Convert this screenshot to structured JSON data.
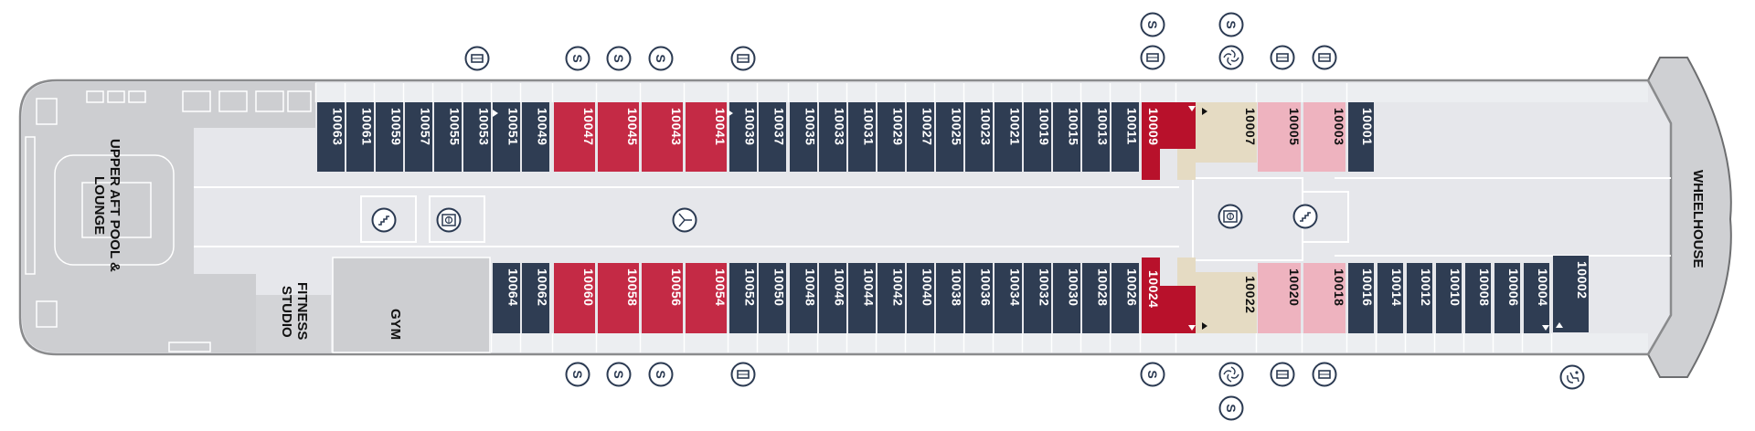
{
  "colors": {
    "navy": "#2f3d53",
    "red": "#c42a45",
    "dark-red": "#b8112b",
    "beige": "#e5dbc3",
    "pink": "#eeb3bf",
    "deck": "#e6e7eb",
    "stern": "#cdced1",
    "hull-line": "#8a8b8d",
    "icon": "#2b3a52"
  },
  "areas": {
    "pool": "UPPER AFT POOL & LOUNGE",
    "fitness": "FITNESS STUDIO",
    "gym": "GYM",
    "wheelhouse": "WHEELHOUSE"
  },
  "cabins_top": [
    {
      "number": "10063",
      "category": "navy"
    },
    {
      "number": "10061",
      "category": "navy"
    },
    {
      "number": "10059",
      "category": "navy"
    },
    {
      "number": "10057",
      "category": "navy"
    },
    {
      "number": "10055",
      "category": "navy"
    },
    {
      "number": "10053",
      "category": "navy"
    },
    {
      "number": "10051",
      "category": "navy"
    },
    {
      "number": "10049",
      "category": "navy"
    },
    {
      "number": "10047",
      "category": "red"
    },
    {
      "number": "10045",
      "category": "red"
    },
    {
      "number": "10043",
      "category": "red"
    },
    {
      "number": "10041",
      "category": "red"
    },
    {
      "number": "10039",
      "category": "navy"
    },
    {
      "number": "10037",
      "category": "navy"
    },
    {
      "number": "10035",
      "category": "navy"
    },
    {
      "number": "10033",
      "category": "navy"
    },
    {
      "number": "10031",
      "category": "navy"
    },
    {
      "number": "10029",
      "category": "navy"
    },
    {
      "number": "10027",
      "category": "navy"
    },
    {
      "number": "10025",
      "category": "navy"
    },
    {
      "number": "10023",
      "category": "navy"
    },
    {
      "number": "10021",
      "category": "navy"
    },
    {
      "number": "10019",
      "category": "navy"
    },
    {
      "number": "10015",
      "category": "navy"
    },
    {
      "number": "10013",
      "category": "navy"
    },
    {
      "number": "10011",
      "category": "navy"
    },
    {
      "number": "10009",
      "category": "dark-red"
    },
    {
      "number": "10007",
      "category": "beige"
    },
    {
      "number": "10005",
      "category": "pink"
    },
    {
      "number": "10003",
      "category": "pink"
    },
    {
      "number": "10001",
      "category": "navy"
    }
  ],
  "cabins_bottom": [
    {
      "number": "10064",
      "category": "navy"
    },
    {
      "number": "10062",
      "category": "navy"
    },
    {
      "number": "10060",
      "category": "red"
    },
    {
      "number": "10058",
      "category": "red"
    },
    {
      "number": "10056",
      "category": "red"
    },
    {
      "number": "10054",
      "category": "red"
    },
    {
      "number": "10052",
      "category": "navy"
    },
    {
      "number": "10050",
      "category": "navy"
    },
    {
      "number": "10048",
      "category": "navy"
    },
    {
      "number": "10046",
      "category": "navy"
    },
    {
      "number": "10044",
      "category": "navy"
    },
    {
      "number": "10042",
      "category": "navy"
    },
    {
      "number": "10040",
      "category": "navy"
    },
    {
      "number": "10038",
      "category": "navy"
    },
    {
      "number": "10036",
      "category": "navy"
    },
    {
      "number": "10034",
      "category": "navy"
    },
    {
      "number": "10032",
      "category": "navy"
    },
    {
      "number": "10030",
      "category": "navy"
    },
    {
      "number": "10028",
      "category": "navy"
    },
    {
      "number": "10026",
      "category": "navy"
    },
    {
      "number": "10024",
      "category": "dark-red"
    },
    {
      "number": "10022",
      "category": "beige"
    },
    {
      "number": "10020",
      "category": "pink"
    },
    {
      "number": "10018",
      "category": "pink"
    },
    {
      "number": "10016",
      "category": "navy"
    },
    {
      "number": "10014",
      "category": "navy"
    },
    {
      "number": "10012",
      "category": "navy"
    },
    {
      "number": "10010",
      "category": "navy"
    },
    {
      "number": "10008",
      "category": "navy"
    },
    {
      "number": "10006",
      "category": "navy"
    },
    {
      "number": "10004",
      "category": "navy"
    },
    {
      "number": "10002",
      "category": "navy"
    }
  ],
  "icons": [
    {
      "type": "connecting-door"
    },
    {
      "type": "s"
    },
    {
      "type": "s"
    },
    {
      "type": "s"
    },
    {
      "type": "connecting-door"
    },
    {
      "type": "s"
    },
    {
      "type": "connecting-door"
    },
    {
      "type": "s"
    },
    {
      "type": "whirlpool"
    },
    {
      "type": "connecting-door"
    },
    {
      "type": "connecting-door"
    },
    {
      "type": "stairs"
    },
    {
      "type": "elevator"
    },
    {
      "type": "wifi"
    },
    {
      "type": "elevator"
    },
    {
      "type": "stairs"
    },
    {
      "type": "s"
    },
    {
      "type": "s"
    },
    {
      "type": "s"
    },
    {
      "type": "connecting-door"
    },
    {
      "type": "s"
    },
    {
      "type": "whirlpool"
    },
    {
      "type": "s"
    },
    {
      "type": "connecting-door"
    },
    {
      "type": "connecting-door"
    },
    {
      "type": "wheelchair-accessible"
    }
  ]
}
